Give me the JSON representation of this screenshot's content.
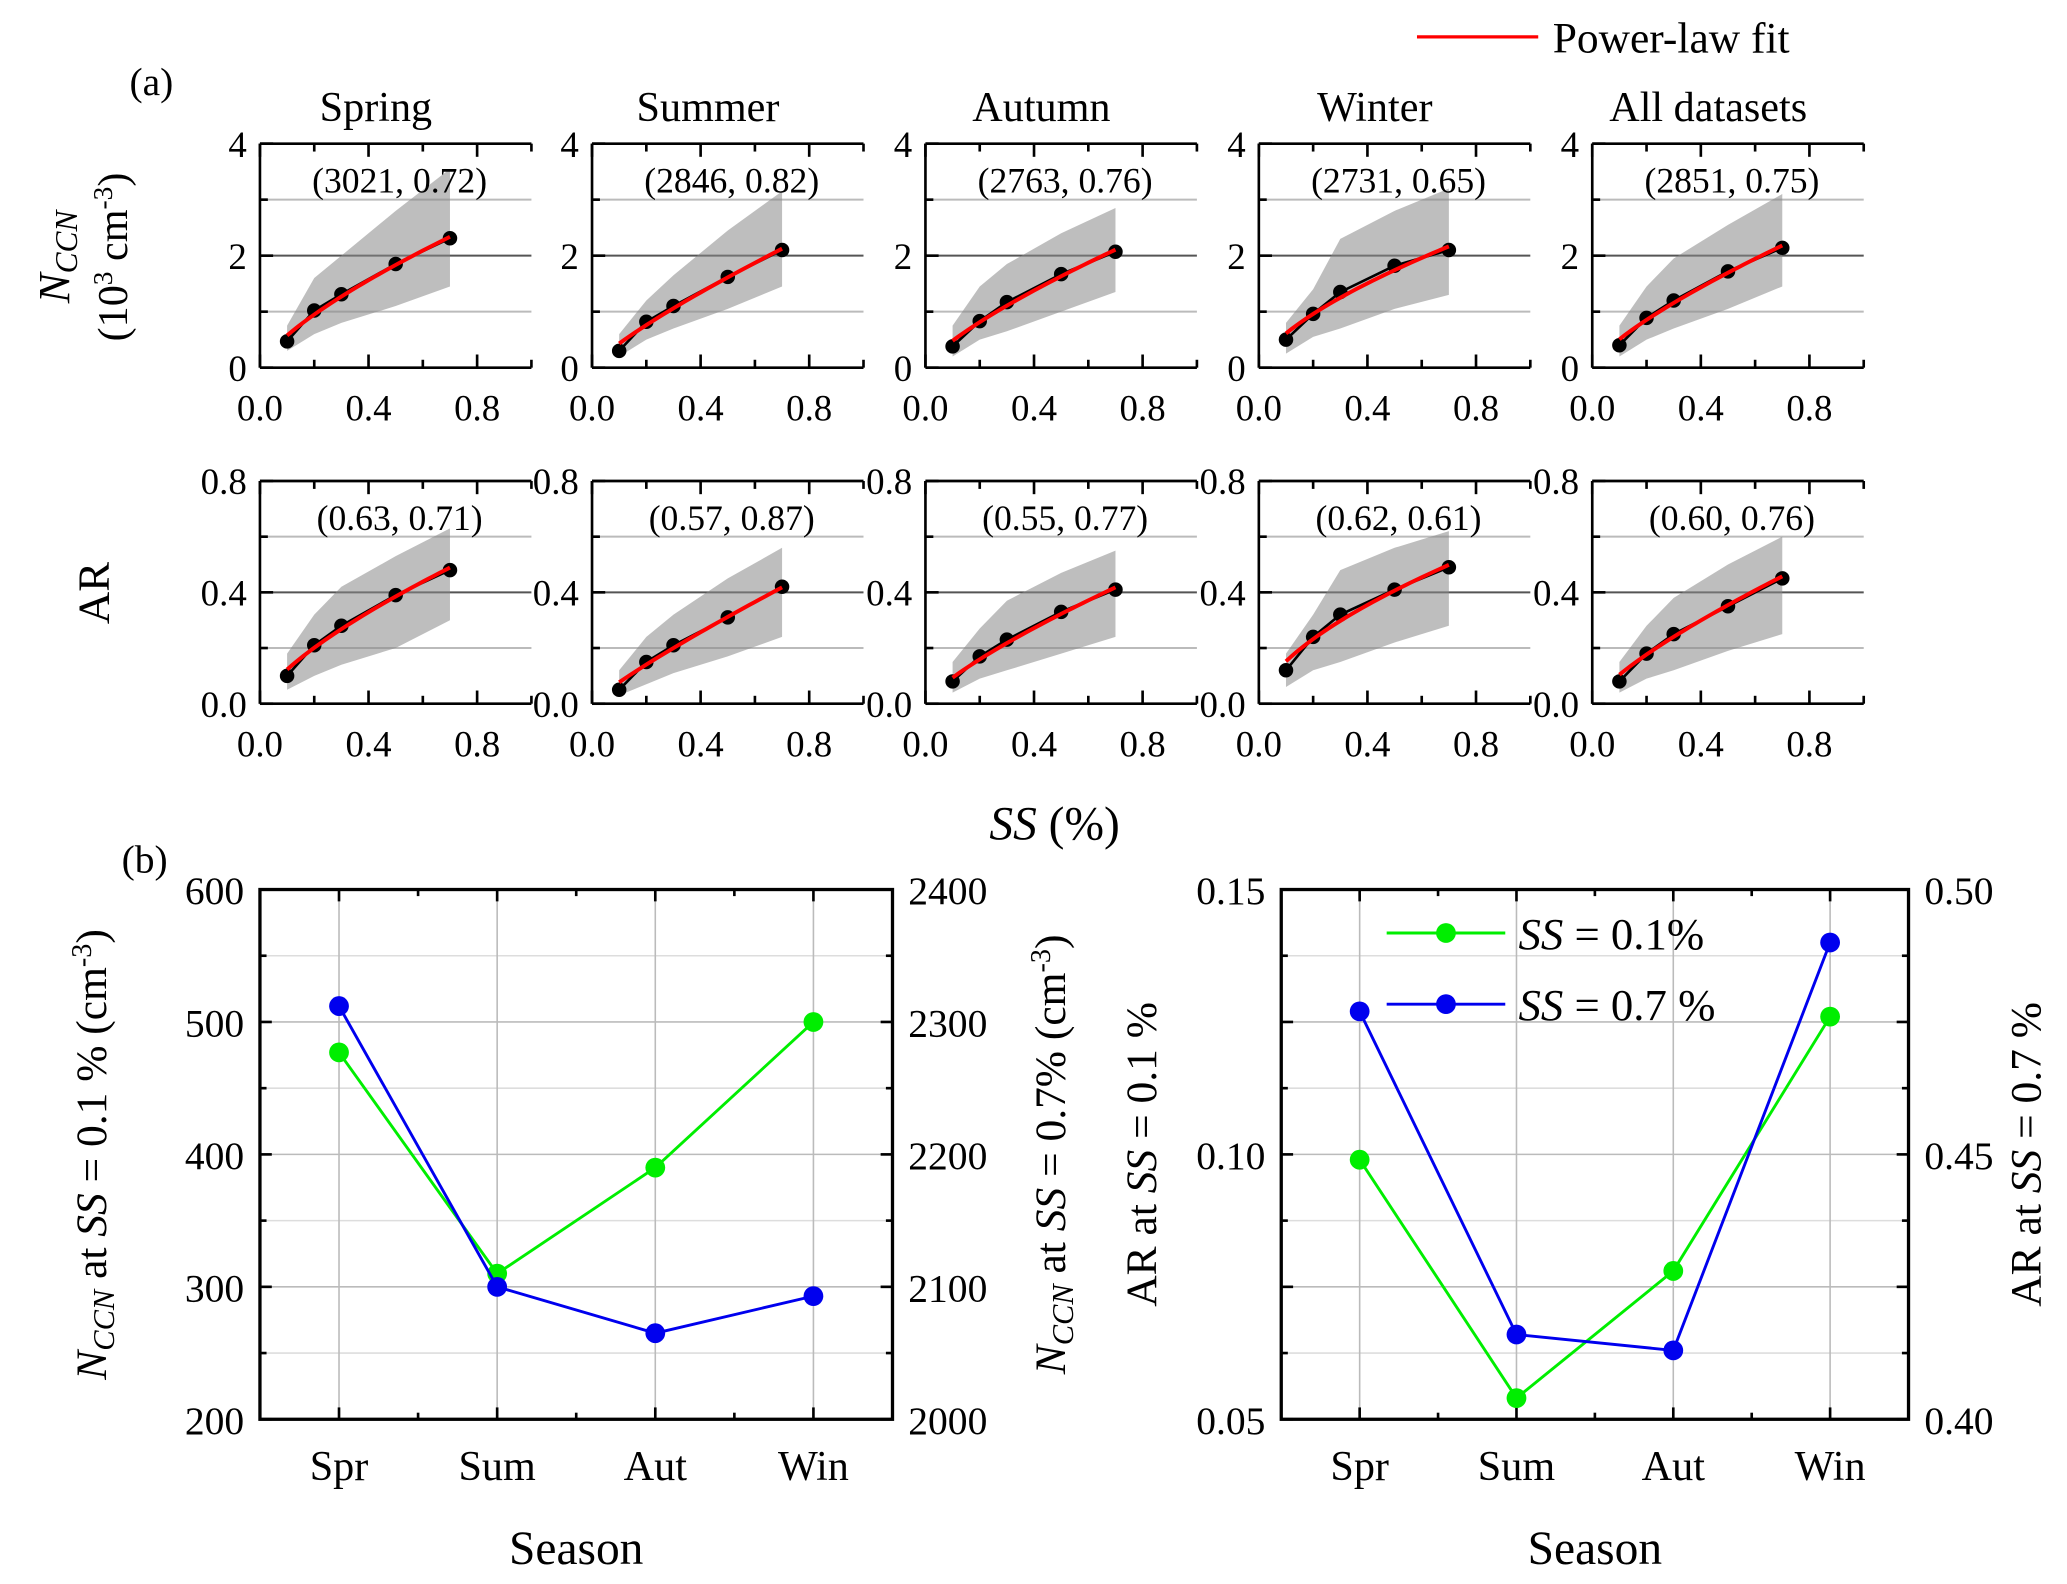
{
  "legend_top": {
    "label": "Power-law fit",
    "color": "#ff0000"
  },
  "panel_a_label": "(a)",
  "panel_b_label": "(b)",
  "chart_data": [
    {
      "type": "line",
      "panel": "a",
      "x": [
        0.1,
        0.2,
        0.3,
        0.5,
        0.7
      ],
      "xlim": [
        0.0,
        1.0
      ],
      "xticks": [
        "0.0",
        "0.4",
        "0.8"
      ],
      "xlabel": [
        [
          "SS",
          "i"
        ],
        [
          " (%)",
          ""
        ]
      ],
      "rows": [
        {
          "ylabel_line1": [
            [
              "N",
              "i"
            ],
            [
              "CCN",
              "sub-i"
            ]
          ],
          "ylabel_line2": [
            [
              "(10",
              ""
            ],
            [
              "3",
              "sup"
            ],
            [
              " cm",
              ""
            ],
            [
              "-3",
              "sup"
            ],
            [
              ")",
              ""
            ]
          ],
          "ylim": [
            0,
            4
          ],
          "yticks": [
            "0",
            "2",
            "4"
          ],
          "grid_light": [
            1,
            3
          ],
          "grid_dark": [
            2
          ],
          "panels": [
            {
              "title": "Spring",
              "fit_label": "(3021, 0.72)",
              "fit": [
                3.021,
                0.72
              ],
              "values": [
                0.47,
                1.02,
                1.31,
                1.85,
                2.31
              ],
              "band_upper": [
                0.75,
                1.6,
                2.0,
                2.8,
                3.55
              ],
              "band_lower": [
                0.3,
                0.6,
                0.8,
                1.1,
                1.45
              ]
            },
            {
              "title": "Summer",
              "fit_label": "(2846, 0.82)",
              "fit": [
                2.846,
                0.82
              ],
              "values": [
                0.3,
                0.82,
                1.1,
                1.62,
                2.1
              ],
              "band_upper": [
                0.6,
                1.2,
                1.65,
                2.45,
                3.15
              ],
              "band_lower": [
                0.2,
                0.5,
                0.7,
                1.05,
                1.45
              ]
            },
            {
              "title": "Autumn",
              "fit_label": "(2763, 0.76)",
              "fit": [
                2.763,
                0.76
              ],
              "values": [
                0.38,
                0.83,
                1.17,
                1.67,
                2.07
              ],
              "band_upper": [
                0.75,
                1.45,
                1.85,
                2.4,
                2.85
              ],
              "band_lower": [
                0.2,
                0.5,
                0.65,
                1.0,
                1.35
              ]
            },
            {
              "title": "Winter",
              "fit_label": "(2731, 0.65)",
              "fit": [
                2.731,
                0.65
              ],
              "values": [
                0.5,
                0.96,
                1.35,
                1.82,
                2.1
              ],
              "band_upper": [
                0.8,
                1.4,
                2.3,
                2.8,
                3.2
              ],
              "band_lower": [
                0.25,
                0.55,
                0.7,
                1.05,
                1.3
              ]
            },
            {
              "title": "All datasets",
              "fit_label": "(2851, 0.75)",
              "fit": [
                2.851,
                0.75
              ],
              "values": [
                0.4,
                0.89,
                1.2,
                1.72,
                2.14
              ],
              "band_upper": [
                0.75,
                1.45,
                1.95,
                2.55,
                3.1
              ],
              "band_lower": [
                0.2,
                0.5,
                0.7,
                1.05,
                1.45
              ]
            }
          ]
        },
        {
          "ylabel_line1": [
            [
              "AR",
              ""
            ]
          ],
          "ylabel_line2": [],
          "ylim": [
            0,
            0.8
          ],
          "yticks": [
            "0.0",
            "0.4",
            "0.8"
          ],
          "grid_light": [
            0.2,
            0.6
          ],
          "grid_dark": [
            0.4
          ],
          "panels": [
            {
              "fit_label": "(0.63, 0.71)",
              "fit": [
                0.63,
                0.71
              ],
              "values": [
                0.1,
                0.21,
                0.28,
                0.39,
                0.48
              ],
              "band_upper": [
                0.18,
                0.32,
                0.42,
                0.53,
                0.63
              ],
              "band_lower": [
                0.05,
                0.1,
                0.14,
                0.2,
                0.3
              ]
            },
            {
              "fit_label": "(0.57, 0.87)",
              "fit": [
                0.57,
                0.87
              ],
              "values": [
                0.05,
                0.15,
                0.21,
                0.31,
                0.42
              ],
              "band_upper": [
                0.12,
                0.24,
                0.32,
                0.45,
                0.56
              ],
              "band_lower": [
                0.03,
                0.07,
                0.11,
                0.17,
                0.24
              ]
            },
            {
              "fit_label": "(0.55, 0.77)",
              "fit": [
                0.55,
                0.77
              ],
              "values": [
                0.08,
                0.17,
                0.23,
                0.33,
                0.41
              ],
              "band_upper": [
                0.15,
                0.27,
                0.37,
                0.47,
                0.55
              ],
              "band_lower": [
                0.04,
                0.09,
                0.12,
                0.18,
                0.24
              ]
            },
            {
              "fit_label": "(0.62, 0.61)",
              "fit": [
                0.62,
                0.61
              ],
              "values": [
                0.12,
                0.24,
                0.32,
                0.41,
                0.49
              ],
              "band_upper": [
                0.18,
                0.32,
                0.48,
                0.56,
                0.62
              ],
              "band_lower": [
                0.06,
                0.12,
                0.15,
                0.22,
                0.28
              ]
            },
            {
              "fit_label": "(0.60, 0.76)",
              "fit": [
                0.6,
                0.76
              ],
              "values": [
                0.08,
                0.18,
                0.25,
                0.35,
                0.45
              ],
              "band_upper": [
                0.15,
                0.28,
                0.38,
                0.5,
                0.6
              ],
              "band_lower": [
                0.04,
                0.09,
                0.12,
                0.19,
                0.25
              ]
            }
          ]
        }
      ]
    },
    {
      "type": "line",
      "panel": "b-left",
      "categories": [
        "Spr",
        "Sum",
        "Aut",
        "Win"
      ],
      "xlabel": "Season",
      "ylim_left": [
        200,
        600
      ],
      "yticks_left": [
        "200",
        "300",
        "400",
        "500",
        "600"
      ],
      "ylim_right": [
        2000,
        2400
      ],
      "yticks_right": [
        "2000",
        "2100",
        "2200",
        "2300",
        "2400"
      ],
      "ylabel_left": [
        [
          "N",
          "i"
        ],
        [
          "CCN",
          "sub-i"
        ],
        [
          " at ",
          ""
        ],
        [
          "SS",
          "i"
        ],
        [
          " = 0.1 % (cm",
          ""
        ],
        [
          "-3",
          "sup"
        ],
        [
          ")",
          ""
        ]
      ],
      "ylabel_right": [
        [
          "N",
          "i"
        ],
        [
          "CCN",
          "sub-i"
        ],
        [
          " at ",
          ""
        ],
        [
          "SS",
          "i"
        ],
        [
          " = 0.7% (cm",
          ""
        ],
        [
          "-3",
          "sup"
        ],
        [
          ")",
          ""
        ]
      ],
      "series": [
        {
          "axis": "left",
          "color": "#00ee00",
          "values": [
            477,
            310,
            390,
            500
          ]
        },
        {
          "axis": "right",
          "color": "#0000ee",
          "values": [
            2312,
            2100,
            2065,
            2093
          ]
        }
      ]
    },
    {
      "type": "line",
      "panel": "b-right",
      "categories": [
        "Spr",
        "Sum",
        "Aut",
        "Win"
      ],
      "xlabel": "Season",
      "ylim_left": [
        0.05,
        0.15
      ],
      "yticks_left": [
        "0.05",
        "0.10",
        "0.15"
      ],
      "ylim_right": [
        0.4,
        0.5
      ],
      "yticks_right": [
        "0.40",
        "0.45",
        "0.50"
      ],
      "ylabel_left": [
        [
          "AR at ",
          ""
        ],
        [
          "SS",
          "i"
        ],
        [
          " = 0.1 %",
          ""
        ]
      ],
      "ylabel_right": [
        [
          "AR at ",
          ""
        ],
        [
          "SS",
          "i"
        ],
        [
          " = 0.7 %",
          ""
        ]
      ],
      "legend": [
        [
          [
            "SS",
            "i"
          ],
          [
            " = 0.1%",
            ""
          ]
        ],
        [
          [
            "SS",
            "i"
          ],
          [
            " = 0.7 %",
            ""
          ]
        ]
      ],
      "series": [
        {
          "axis": "left",
          "color": "#00ee00",
          "values": [
            0.099,
            0.054,
            0.078,
            0.126
          ]
        },
        {
          "axis": "right",
          "color": "#0000ee",
          "values": [
            0.477,
            0.416,
            0.413,
            0.49
          ]
        }
      ]
    }
  ]
}
